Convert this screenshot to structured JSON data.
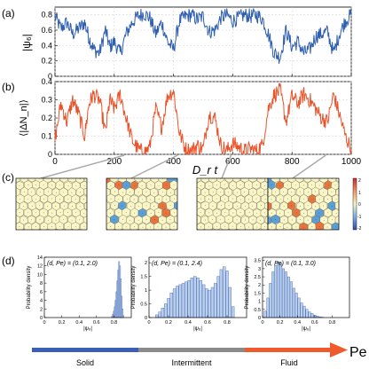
{
  "panel_labels": {
    "a": "(a)",
    "b": "(b)",
    "c": "(c)",
    "d": "(d)"
  },
  "colors": {
    "psi6_line": "#2f5fb0",
    "dN_line": "#e8532b",
    "axis": "#000000",
    "cell_fill": "#fbf6c6",
    "cell_plus": "#e8743b",
    "cell_minus": "#5a9fd6",
    "hist_fill": "#bcd0ec",
    "hist_edge": "#3c64b4",
    "arrow_solid": "#3a5fb6",
    "arrow_intermittent": "#8a8a8a",
    "arrow_fluid": "#ee5a2c",
    "connector": "#aaaaaa"
  },
  "colorbar": {
    "ticks": [
      "2",
      "1",
      "0",
      "-1",
      "-2"
    ]
  },
  "arrow": {
    "label": "Pe",
    "sections": [
      "Solid",
      "Intermittent",
      "Fluid"
    ]
  },
  "chart_data": [
    {
      "type": "line",
      "panel": "(a)",
      "ylabel": "|ψ₆|",
      "xlim": [
        0,
        1000
      ],
      "ylim": [
        0,
        0.9
      ],
      "yticks": [
        "0",
        "0.2",
        "0.4",
        "0.6",
        "0.8"
      ],
      "grid": true,
      "series": [
        {
          "x": [
            0,
            20,
            40,
            60,
            80,
            100,
            115,
            130,
            150,
            170,
            185,
            200,
            220,
            240,
            260,
            280,
            300,
            320,
            340,
            360,
            380,
            400,
            420,
            440,
            460,
            480,
            500,
            520,
            540,
            560,
            580,
            600,
            620,
            640,
            660,
            680,
            700,
            720,
            740,
            760,
            780,
            800,
            820,
            840,
            860,
            880,
            900,
            920,
            940,
            960,
            980,
            1000
          ],
          "y": [
            0.78,
            0.62,
            0.7,
            0.55,
            0.62,
            0.7,
            0.5,
            0.35,
            0.3,
            0.6,
            0.38,
            0.45,
            0.3,
            0.55,
            0.7,
            0.78,
            0.82,
            0.76,
            0.55,
            0.7,
            0.45,
            0.35,
            0.72,
            0.78,
            0.8,
            0.74,
            0.78,
            0.58,
            0.6,
            0.76,
            0.8,
            0.72,
            0.76,
            0.8,
            0.78,
            0.8,
            0.75,
            0.55,
            0.3,
            0.25,
            0.6,
            0.38,
            0.45,
            0.3,
            0.35,
            0.52,
            0.55,
            0.58,
            0.3,
            0.55,
            0.72,
            0.8
          ]
        }
      ]
    },
    {
      "type": "line",
      "panel": "(b)",
      "ylabel": "⟨|ΔN_n|⟩",
      "xlabel": "D_r t",
      "xlim": [
        0,
        1000
      ],
      "ylim": [
        0,
        0.4
      ],
      "xticks": [
        "0",
        "200",
        "400",
        "600",
        "800",
        "1000"
      ],
      "yticks": [
        "0",
        "0.1",
        "0.2",
        "0.3",
        "0.4"
      ],
      "grid": true,
      "series": [
        {
          "x": [
            0,
            20,
            40,
            60,
            80,
            100,
            115,
            130,
            150,
            170,
            185,
            200,
            220,
            240,
            260,
            280,
            300,
            320,
            340,
            360,
            380,
            400,
            420,
            440,
            460,
            480,
            500,
            520,
            540,
            560,
            580,
            600,
            620,
            640,
            660,
            680,
            700,
            720,
            740,
            760,
            780,
            800,
            820,
            840,
            860,
            880,
            900,
            920,
            940,
            960,
            980,
            1000
          ],
          "y": [
            0.08,
            0.28,
            0.18,
            0.3,
            0.22,
            0.1,
            0.28,
            0.33,
            0.3,
            0.12,
            0.3,
            0.25,
            0.33,
            0.2,
            0.08,
            0.03,
            0.01,
            0.04,
            0.25,
            0.15,
            0.32,
            0.35,
            0.12,
            0.03,
            0.02,
            0.05,
            0.03,
            0.22,
            0.2,
            0.05,
            0.02,
            0.06,
            0.04,
            0.02,
            0.03,
            0.02,
            0.05,
            0.25,
            0.33,
            0.35,
            0.18,
            0.32,
            0.28,
            0.33,
            0.3,
            0.25,
            0.2,
            0.18,
            0.33,
            0.22,
            0.1,
            0.03
          ]
        }
      ]
    },
    {
      "type": "bar",
      "panel": "(d) left",
      "annotation": "(d, Pe) = (0.1, 2.0)",
      "ylabel": "Probability density",
      "xlabel": "|ψ₆|",
      "xlim": [
        0,
        1
      ],
      "ylim": [
        0,
        14
      ],
      "xticks": [
        "0",
        "0.2",
        "0.4",
        "0.6",
        "0.8"
      ],
      "yticks": [
        "0",
        "2",
        "4",
        "6",
        "8",
        "10",
        "12",
        "14"
      ],
      "x": [
        0.78,
        0.79,
        0.8,
        0.81,
        0.82,
        0.83,
        0.84,
        0.85,
        0.86,
        0.87,
        0.88,
        0.89,
        0.9,
        0.91
      ],
      "values": [
        0.3,
        0.8,
        1.5,
        2.5,
        4,
        6,
        8.5,
        11,
        13,
        12,
        9,
        5,
        2,
        0.5
      ]
    },
    {
      "type": "bar",
      "panel": "(d) middle",
      "annotation": "(d, Pe) = (0.1, 2.4)",
      "ylabel": "Probability density",
      "xlabel": "|ψ₆|",
      "xlim": [
        0,
        1
      ],
      "ylim": [
        0,
        2.2
      ],
      "xticks": [
        "0",
        "0.2",
        "0.4",
        "0.6",
        "0.8"
      ],
      "yticks": [
        "0",
        "0.5",
        "1",
        "1.5",
        "2"
      ],
      "x": [
        0.08,
        0.11,
        0.14,
        0.17,
        0.2,
        0.23,
        0.26,
        0.29,
        0.32,
        0.35,
        0.38,
        0.41,
        0.44,
        0.47,
        0.5,
        0.53,
        0.56,
        0.59,
        0.62,
        0.65,
        0.68,
        0.71,
        0.74,
        0.77,
        0.8,
        0.83,
        0.86
      ],
      "values": [
        0.1,
        0.2,
        0.35,
        0.5,
        0.7,
        0.9,
        1.05,
        1.15,
        1.2,
        1.25,
        1.3,
        1.35,
        1.45,
        1.5,
        1.45,
        1.35,
        1.2,
        1.05,
        1.0,
        1.1,
        1.25,
        1.5,
        1.75,
        1.85,
        1.7,
        1.1,
        0.4
      ]
    },
    {
      "type": "bar",
      "panel": "(d) right",
      "annotation": "(d, Pe) = (0.1, 3.0)",
      "ylabel": "Probability density",
      "xlabel": "|ψ₆|",
      "xlim": [
        0,
        1
      ],
      "ylim": [
        0,
        3.7
      ],
      "xticks": [
        "0",
        "0.2",
        "0.4",
        "0.6",
        "0.8"
      ],
      "yticks": [
        "0",
        "0.5",
        "1",
        "1.5",
        "2",
        "2.5",
        "3",
        "3.5"
      ],
      "x": [
        0.03,
        0.06,
        0.09,
        0.12,
        0.15,
        0.18,
        0.21,
        0.24,
        0.27,
        0.3,
        0.33,
        0.36,
        0.39,
        0.42,
        0.45,
        0.48,
        0.51,
        0.54,
        0.57,
        0.6,
        0.63,
        0.66,
        0.69
      ],
      "values": [
        0.4,
        1.2,
        2.1,
        2.8,
        3.2,
        3.4,
        3.3,
        3.0,
        2.8,
        2.5,
        2.2,
        1.8,
        1.5,
        1.2,
        0.9,
        0.7,
        0.5,
        0.35,
        0.25,
        0.15,
        0.1,
        0.05,
        0.02
      ]
    }
  ]
}
